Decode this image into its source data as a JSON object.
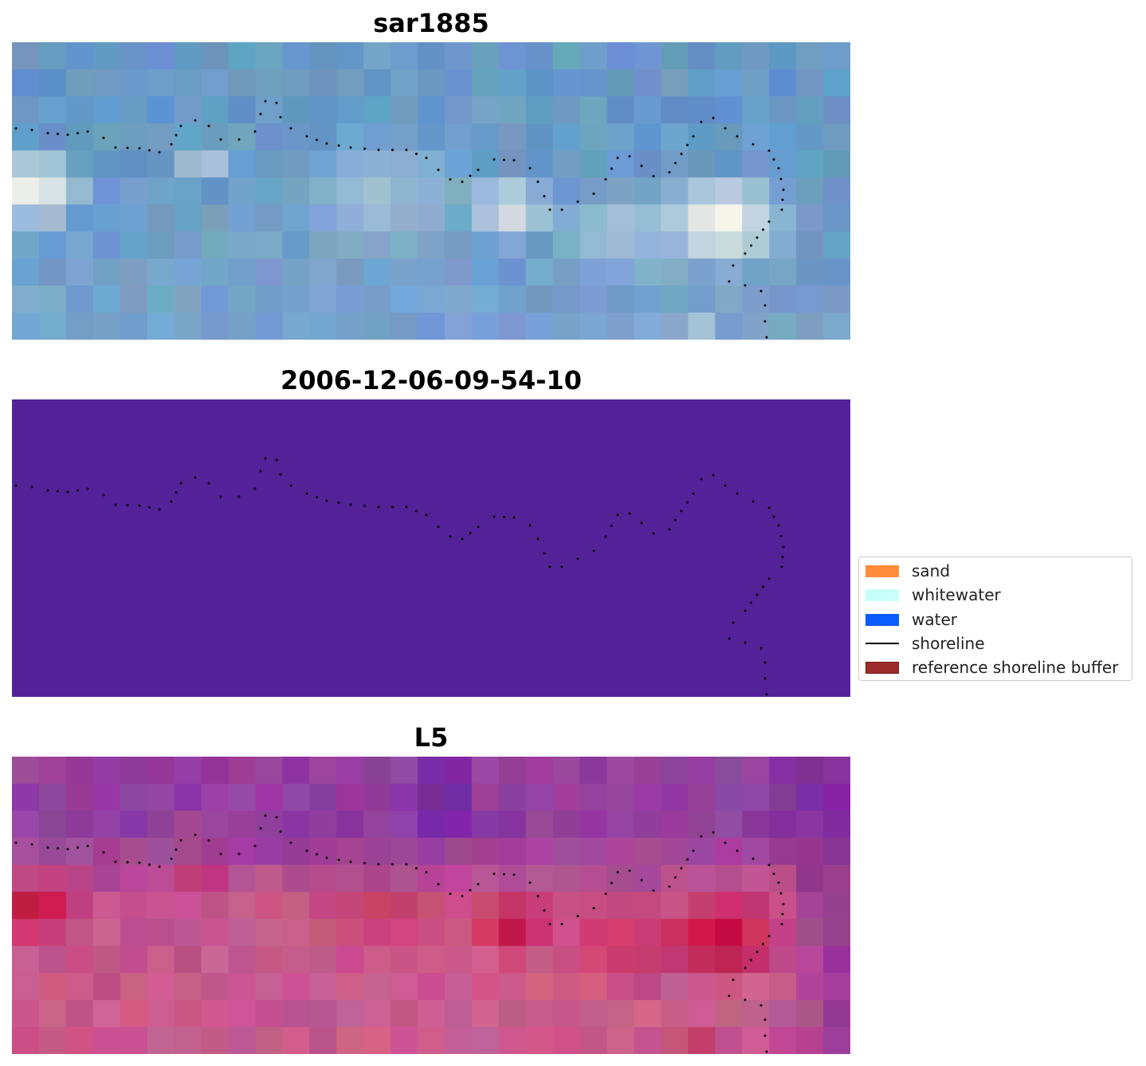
{
  "panels": [
    {
      "title": "sar1885",
      "kind": "rgb"
    },
    {
      "title": "2006-12-06-09-54-10",
      "kind": "classification",
      "fill": "#532299"
    },
    {
      "title": "L5",
      "kind": "index"
    }
  ],
  "legend": {
    "items": [
      {
        "label": "sand",
        "color": "#ff8c3a",
        "type": "patch"
      },
      {
        "label": "whitewater",
        "color": "#c8fffb",
        "type": "patch"
      },
      {
        "label": "water",
        "color": "#0a5cff",
        "type": "patch"
      },
      {
        "label": "shoreline",
        "color": "#000000",
        "type": "line"
      },
      {
        "label": "reference shoreline buffer",
        "color": "#9c2b2b",
        "type": "patch",
        "edge": "#7a1515"
      }
    ]
  }
}
